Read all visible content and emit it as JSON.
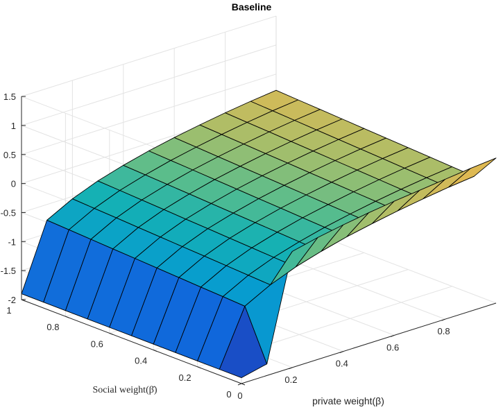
{
  "chart_data": {
    "type": "surface",
    "title": "Baseline",
    "xlabel": "private weight(β)",
    "ylabel": "Social weight(β̄)",
    "zlabel": "",
    "xlim": [
      0,
      1
    ],
    "ylim": [
      0,
      1
    ],
    "zlim": [
      -2,
      1.5
    ],
    "x_ticks": [
      "0",
      "0.2",
      "0.4",
      "0.6",
      "0.8"
    ],
    "y_ticks": [
      "0",
      "0.2",
      "0.4",
      "0.6",
      "0.8",
      "1"
    ],
    "z_ticks": [
      "-2",
      "-1.5",
      "-1",
      "-0.5",
      "0",
      "0.5",
      "1",
      "1.5"
    ],
    "grid": true,
    "colormap": "parula",
    "x": [
      0,
      0.1,
      0.2,
      0.3,
      0.4,
      0.5,
      0.6,
      0.7,
      0.8,
      0.9,
      1.0
    ],
    "y": [
      0,
      0.1,
      0.2,
      0.3,
      0.4,
      0.5,
      0.6,
      0.7,
      0.8,
      0.9,
      1.0
    ],
    "z": [
      [
        -1.9,
        -1.8,
        0.0,
        0.1,
        0.18,
        0.25,
        0.31,
        0.36,
        0.41,
        0.46,
        0.5
      ],
      [
        -1.9,
        -0.95,
        -0.72,
        -0.55,
        -0.42,
        -0.31,
        -0.22,
        -0.14,
        -0.07,
        -0.01,
        0.04
      ],
      [
        -1.9,
        -0.93,
        -0.7,
        -0.53,
        -0.4,
        -0.29,
        -0.2,
        -0.12,
        -0.05,
        0.01,
        0.06
      ],
      [
        -1.9,
        -0.91,
        -0.68,
        -0.51,
        -0.38,
        -0.27,
        -0.18,
        -0.1,
        -0.03,
        0.03,
        0.08
      ],
      [
        -1.9,
        -0.89,
        -0.66,
        -0.49,
        -0.36,
        -0.25,
        -0.16,
        -0.08,
        -0.01,
        0.05,
        0.1
      ],
      [
        -1.9,
        -0.87,
        -0.64,
        -0.47,
        -0.34,
        -0.23,
        -0.14,
        -0.06,
        0.01,
        0.07,
        0.12
      ],
      [
        -1.9,
        -0.85,
        -0.62,
        -0.45,
        -0.32,
        -0.21,
        -0.12,
        -0.04,
        0.03,
        0.09,
        0.14
      ],
      [
        -1.9,
        -0.83,
        -0.6,
        -0.43,
        -0.3,
        -0.19,
        -0.1,
        -0.02,
        0.05,
        0.11,
        0.16
      ],
      [
        -1.9,
        -0.81,
        -0.58,
        -0.41,
        -0.28,
        -0.17,
        -0.08,
        0.0,
        0.07,
        0.13,
        0.18
      ],
      [
        -1.9,
        -0.79,
        -0.56,
        -0.39,
        -0.26,
        -0.15,
        -0.06,
        0.02,
        0.09,
        0.15,
        0.2
      ],
      [
        -1.9,
        -0.77,
        -0.54,
        -0.37,
        -0.24,
        -0.13,
        -0.04,
        0.04,
        0.11,
        0.17,
        0.22
      ]
    ]
  }
}
